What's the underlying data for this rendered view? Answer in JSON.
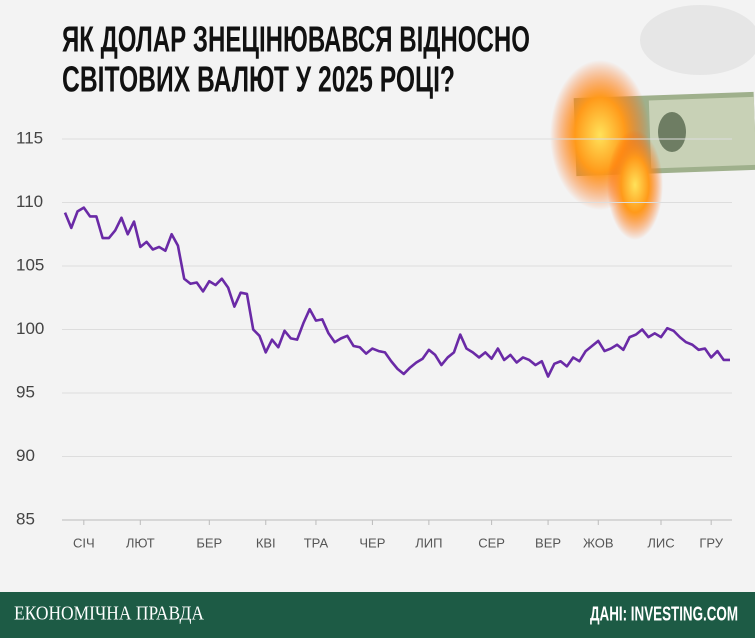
{
  "chart_data": {
    "type": "line",
    "title": [
      "ЯК ДОЛАР ЗНЕЦІНЮВАВСЯ ВІДНОСНО",
      "СВІТОВИХ ВАЛЮТ У 2025 РОЦІ?"
    ],
    "series": [
      {
        "color": "#6a2aa6",
        "values": [
          109.2,
          108,
          109.3,
          109.6,
          108.9,
          108.9,
          107.2,
          107.2,
          107.8,
          108.8,
          107.5,
          108.5,
          106.5,
          106.9,
          106.3,
          106.5,
          106.2,
          107.5,
          106.6,
          104,
          103.6,
          103.7,
          103,
          103.8,
          103.5,
          104,
          103.3,
          101.8,
          102.9,
          102.8,
          100,
          99.5,
          98.2,
          99.2,
          98.6,
          99.9,
          99.3,
          99.2,
          100.5,
          101.6,
          100.7,
          100.8,
          99.7,
          99,
          99.3,
          99.5,
          98.7,
          98.6,
          98.1,
          98.5,
          98.3,
          98.2,
          97.5,
          96.9,
          96.5,
          97,
          97.4,
          97.7,
          98.4,
          98,
          97.2,
          97.8,
          98.2,
          99.6,
          98.5,
          98.2,
          97.8,
          98.2,
          97.7,
          98.5,
          97.6,
          98,
          97.4,
          97.8,
          97.6,
          97.2,
          97.5,
          96.3,
          97.3,
          97.5,
          97.1,
          97.8,
          97.5,
          98.3,
          98.7,
          99.1,
          98.3,
          98.5,
          98.8,
          98.4,
          99.4,
          99.6,
          100,
          99.4,
          99.7,
          99.4,
          100.1,
          99.9,
          99.4,
          99,
          98.8,
          98.4,
          98.5,
          97.8,
          98.3,
          97.6,
          97.6
        ]
      }
    ],
    "xlim": [
      0,
      106
    ],
    "xticks": [
      {
        "value": 3,
        "label": "СІЧ"
      },
      {
        "value": 12,
        "label": "ЛЮТ"
      },
      {
        "value": 23,
        "label": "БЕР"
      },
      {
        "value": 32,
        "label": "КВІ"
      },
      {
        "value": 40,
        "label": "ТРА"
      },
      {
        "value": 49,
        "label": "ЧЕР"
      },
      {
        "value": 58,
        "label": "ЛИП"
      },
      {
        "value": 68,
        "label": "СЕР"
      },
      {
        "value": 77,
        "label": "ВЕР"
      },
      {
        "value": 85,
        "label": "ЖОВ"
      },
      {
        "value": 95,
        "label": "ЛИС"
      },
      {
        "value": 103,
        "label": "ГРУ"
      }
    ],
    "ylim": [
      85,
      115
    ],
    "yticks": [
      85,
      90,
      95,
      100,
      105,
      110,
      115
    ],
    "grid": true
  },
  "footer": {
    "brand": "ЕКОНОМІЧНА ПРАВДА",
    "source": "ДАНІ: INVESTING.COM"
  }
}
